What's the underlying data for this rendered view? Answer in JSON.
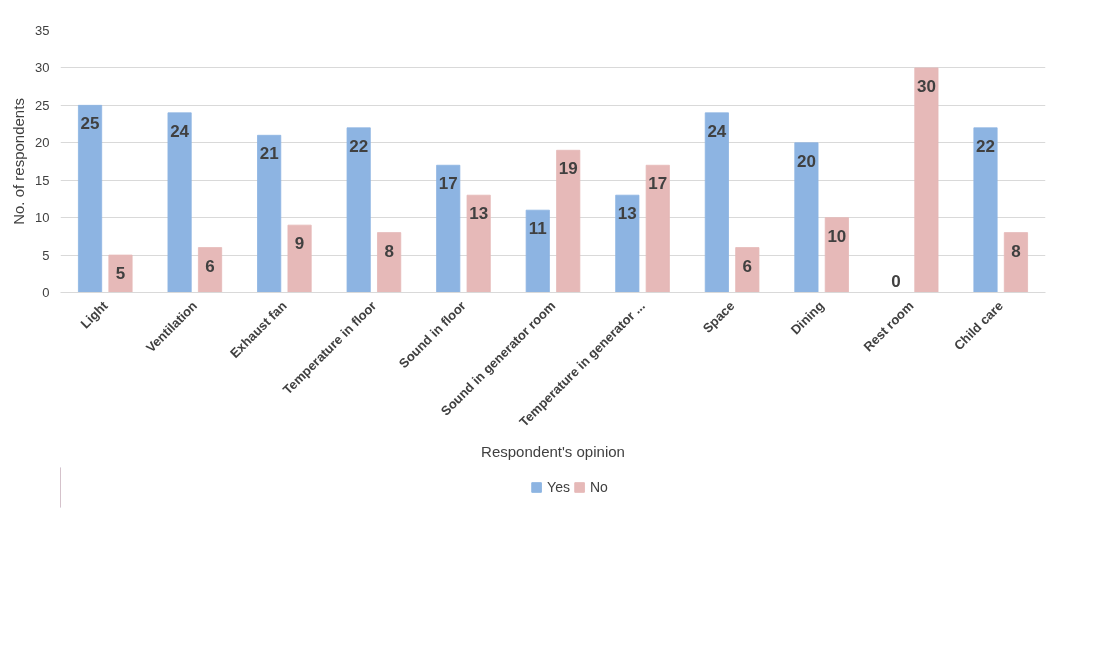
{
  "chart_data": {
    "type": "bar",
    "xlabel": "Respondent's opinion",
    "ylabel": "No. of respondents",
    "categories": [
      "Light",
      "Ventilation",
      "Exhaust fan",
      "Temperature in floor",
      "Sound in floor",
      "Sound in generator room",
      "Temperature in generator ...",
      "Space",
      "Dining",
      "Rest room",
      "Child care"
    ],
    "series": [
      {
        "name": "Yes",
        "color": "#8db4e2",
        "values": [
          25,
          24,
          21,
          22,
          17,
          11,
          13,
          24,
          20,
          0,
          22
        ]
      },
      {
        "name": "No",
        "color": "#e6b9b8",
        "values": [
          5,
          6,
          9,
          8,
          13,
          19,
          17,
          6,
          10,
          30,
          8
        ]
      }
    ],
    "ylim": [
      0,
      35
    ],
    "yticks": [
      0,
      5,
      10,
      15,
      20,
      25,
      30,
      35
    ],
    "grid": "y",
    "legend": "bottom",
    "data_labels": true
  }
}
